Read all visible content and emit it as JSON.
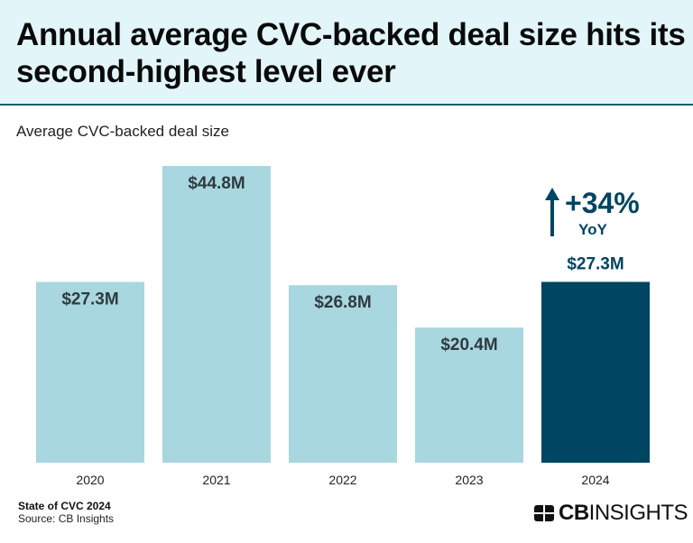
{
  "chart_data": {
    "type": "bar",
    "title": "Annual average CVC-backed deal size hits its second-highest level ever",
    "subtitle": "Average CVC-backed deal size",
    "categories": [
      "2020",
      "2021",
      "2022",
      "2023",
      "2024"
    ],
    "values": [
      27.3,
      44.8,
      26.8,
      20.4,
      27.3
    ],
    "data_labels": [
      "$27.3M",
      "$44.8M",
      "$26.8M",
      "$20.4M",
      "$27.3M"
    ],
    "unit": "$M",
    "ylim": [
      0,
      44.8
    ],
    "grid": false,
    "colors": {
      "default": "#a9d7df",
      "highlight": "#004561"
    },
    "highlight_index": 4,
    "annotation": {
      "value": "+34%",
      "label": "YoY",
      "icon": "arrow-up-icon"
    }
  },
  "footer": {
    "report": "State of CVC 2024",
    "source": "Source: CB Insights"
  },
  "logo": {
    "bold": "CB",
    "rest": "INSIGHTS"
  }
}
